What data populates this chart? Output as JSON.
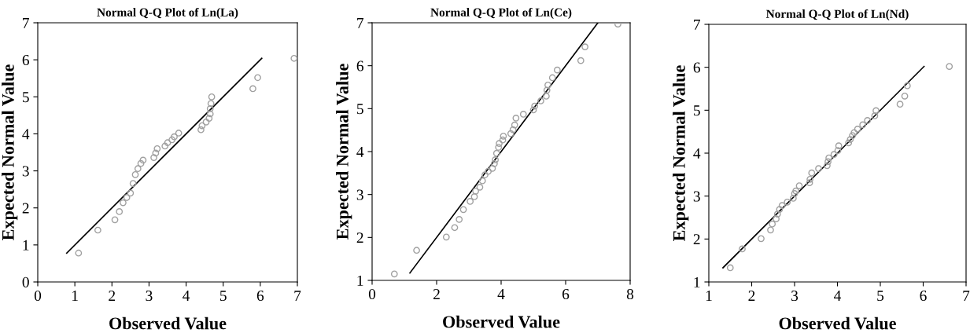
{
  "chart_data": [
    {
      "type": "scatter",
      "title": "Normal Q-Q Plot of Ln(La)",
      "xlabel": "Observed Value",
      "ylabel": "Expected Normal Value",
      "xlim": [
        0,
        7
      ],
      "ylim": [
        0,
        7
      ],
      "xticks": [
        0,
        1,
        2,
        3,
        4,
        5,
        6,
        7
      ],
      "yticks": [
        0,
        1,
        2,
        3,
        4,
        5,
        6,
        7
      ],
      "series": [
        {
          "marker": "circle",
          "color": "#a0a0a0",
          "x": [
            1.1,
            1.62,
            2.08,
            2.2,
            2.3,
            2.4,
            2.5,
            2.57,
            2.63,
            2.7,
            2.78,
            2.84,
            3.13,
            3.18,
            3.22,
            3.43,
            3.5,
            3.62,
            3.68,
            3.8,
            4.4,
            4.43,
            4.54,
            4.62,
            4.65,
            4.65,
            4.67,
            4.69,
            5.8,
            5.93,
            6.91
          ],
          "values": [
            0.78,
            1.4,
            1.68,
            1.9,
            2.14,
            2.28,
            2.4,
            2.66,
            2.9,
            3.06,
            3.2,
            3.29,
            3.36,
            3.48,
            3.6,
            3.67,
            3.76,
            3.84,
            3.92,
            4.02,
            4.11,
            4.22,
            4.32,
            4.42,
            4.54,
            4.68,
            4.82,
            5.0,
            5.22,
            5.52,
            6.04
          ]
        },
        {
          "type": "line",
          "marker": "none",
          "color": "#000000",
          "x": [
            0.78,
            6.04
          ],
          "values": [
            0.78,
            6.04
          ]
        }
      ]
    },
    {
      "type": "scatter",
      "title": "Normal Q-Q Plot of Ln(Ce)",
      "xlabel": "Observed Value",
      "ylabel": "Expected Normal Value",
      "xlim": [
        0,
        8
      ],
      "ylim": [
        1,
        7
      ],
      "xticks": [
        0,
        2,
        4,
        6,
        8
      ],
      "yticks": [
        1,
        2,
        3,
        4,
        5,
        6,
        7
      ],
      "series": [
        {
          "marker": "circle",
          "color": "#a0a0a0",
          "x": [
            0.69,
            1.38,
            2.3,
            2.56,
            2.7,
            2.83,
            3.04,
            3.17,
            3.21,
            3.34,
            3.42,
            3.5,
            3.6,
            3.73,
            3.79,
            3.82,
            3.86,
            3.92,
            3.94,
            4.05,
            4.07,
            4.3,
            4.37,
            4.42,
            4.46,
            4.69,
            5.0,
            5.04,
            5.23,
            5.4,
            5.42,
            5.45,
            5.59,
            5.74,
            6.47,
            6.6,
            7.62
          ],
          "values": [
            1.15,
            1.7,
            2.01,
            2.23,
            2.42,
            2.65,
            2.84,
            2.95,
            3.08,
            3.17,
            3.32,
            3.46,
            3.54,
            3.61,
            3.72,
            3.81,
            3.96,
            4.1,
            4.19,
            4.27,
            4.36,
            4.42,
            4.51,
            4.62,
            4.78,
            4.87,
            4.97,
            5.06,
            5.18,
            5.29,
            5.43,
            5.55,
            5.72,
            5.9,
            6.12,
            6.44,
            6.97
          ]
        },
        {
          "type": "line",
          "marker": "none",
          "color": "#000000",
          "x": [
            1.17,
            7.0
          ],
          "values": [
            1.17,
            7.0
          ]
        }
      ]
    },
    {
      "type": "scatter",
      "title": "Normal Q-Q Plot of Ln(Nd)",
      "xlabel": "Observed Value",
      "ylabel": "Expected Normal Value",
      "xlim": [
        1,
        7
      ],
      "ylim": [
        1,
        7
      ],
      "xticks": [
        1,
        2,
        3,
        4,
        5,
        6,
        7
      ],
      "yticks": [
        1,
        2,
        3,
        4,
        5,
        6,
        7
      ],
      "series": [
        {
          "marker": "circle",
          "color": "#a0a0a0",
          "x": [
            1.5,
            1.78,
            2.22,
            2.44,
            2.48,
            2.57,
            2.6,
            2.65,
            2.71,
            2.83,
            2.97,
            3.0,
            3.03,
            3.11,
            3.35,
            3.36,
            3.4,
            3.56,
            3.76,
            3.78,
            3.8,
            3.92,
            4.01,
            4.03,
            4.26,
            4.3,
            4.35,
            4.39,
            4.47,
            4.59,
            4.7,
            4.87,
            4.9,
            5.46,
            5.57,
            5.63,
            6.61
          ],
          "values": [
            1.33,
            1.77,
            2.01,
            2.21,
            2.35,
            2.47,
            2.58,
            2.69,
            2.78,
            2.86,
            2.95,
            3.06,
            3.12,
            3.24,
            3.31,
            3.39,
            3.54,
            3.64,
            3.71,
            3.8,
            3.89,
            3.97,
            4.06,
            4.17,
            4.24,
            4.32,
            4.41,
            4.48,
            4.56,
            4.66,
            4.76,
            4.87,
            4.99,
            5.14,
            5.33,
            5.57,
            6.02
          ]
        },
        {
          "type": "line",
          "marker": "none",
          "color": "#000000",
          "x": [
            1.33,
            6.02
          ],
          "values": [
            1.33,
            6.02
          ]
        }
      ]
    }
  ]
}
